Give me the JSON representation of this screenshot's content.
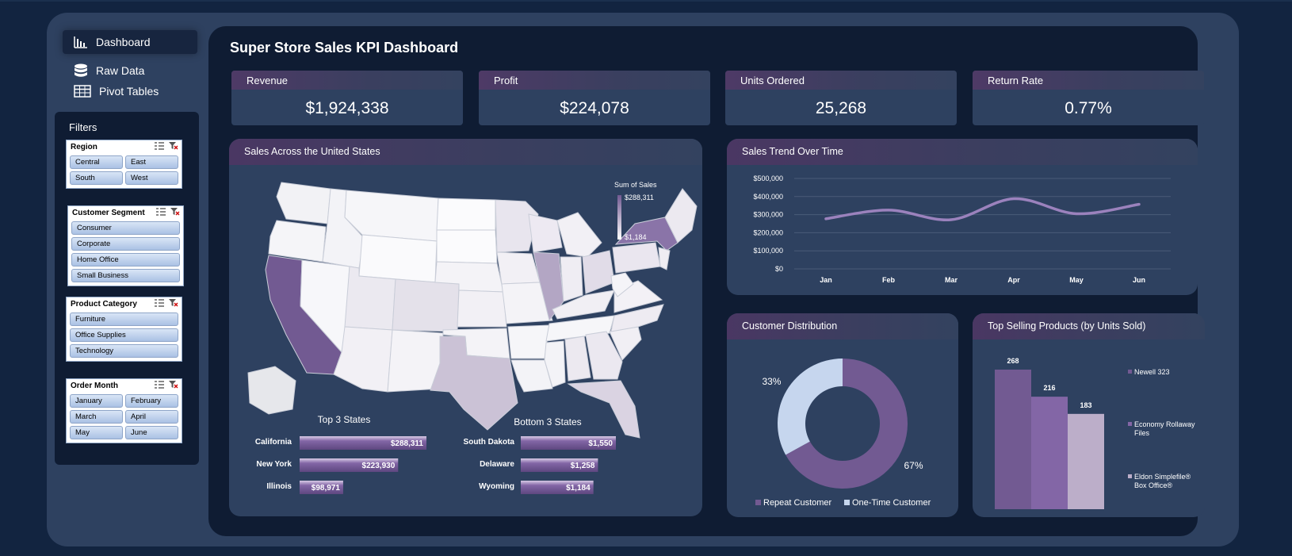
{
  "nav": {
    "items": [
      {
        "label": "Dashboard",
        "icon": "bar-chart-icon"
      },
      {
        "label": "Raw Data",
        "icon": "database-icon"
      },
      {
        "label": "Pivot Tables",
        "icon": "table-icon"
      }
    ]
  },
  "filters": {
    "title": "Filters",
    "slicers": [
      {
        "title": "Region",
        "items": [
          "Central",
          "East",
          "South",
          "West"
        ]
      },
      {
        "title": "Customer Segment",
        "items": [
          "Consumer",
          "Corporate",
          "Home Office",
          "Small Business"
        ]
      },
      {
        "title": "Product Category",
        "items": [
          "Furniture",
          "Office Supplies",
          "Technology"
        ]
      },
      {
        "title": "Order Month",
        "items": [
          "January",
          "February",
          "March",
          "April",
          "May",
          "June"
        ]
      }
    ]
  },
  "dashboard": {
    "title": "Super Store Sales KPI Dashboard"
  },
  "kpis": [
    {
      "label": "Revenue",
      "value": "$1,924,338"
    },
    {
      "label": "Profit",
      "value": "$224,078"
    },
    {
      "label": "Units Ordered",
      "value": "25,268"
    },
    {
      "label": "Return Rate",
      "value": "0.77%"
    }
  ],
  "colors": {
    "accent": "#725a92",
    "accent_mid": "#8366a6",
    "accent_light": "#bcaec9",
    "donut_light": "#c6d6ee",
    "line": "#9b82bd",
    "panel": "#2e4160",
    "main_bg": "#0f1c33"
  },
  "chart_data": [
    {
      "type": "map",
      "title": "Sales Across the United States",
      "legend": {
        "title": "Sum of Sales",
        "max": "$288,311",
        "min": "$1,184"
      },
      "top_title": "Top 3 States",
      "top": [
        {
          "state": "California",
          "value": 288311,
          "label": "$288,311"
        },
        {
          "state": "New York",
          "value": 223930,
          "label": "$223,930"
        },
        {
          "state": "Illinois",
          "value": 98971,
          "label": "$98,971"
        }
      ],
      "bottom_title": "Bottom 3 States",
      "bottom": [
        {
          "state": "South Dakota",
          "value": 1550,
          "label": "$1,550"
        },
        {
          "state": "Delaware",
          "value": 1258,
          "label": "$1,258"
        },
        {
          "state": "Wyoming",
          "value": 1184,
          "label": "$1,184"
        }
      ]
    },
    {
      "type": "line",
      "title": "Sales Trend Over Time",
      "categories": [
        "Jan",
        "Feb",
        "Mar",
        "Apr",
        "May",
        "Jun"
      ],
      "values": [
        277000,
        325000,
        272000,
        388000,
        305000,
        357000
      ],
      "ylim": [
        0,
        500000
      ],
      "yticks": [
        "$0",
        "$100,000",
        "$200,000",
        "$300,000",
        "$400,000",
        "$500,000"
      ],
      "grid": true
    },
    {
      "type": "pie",
      "title": "Customer Distribution",
      "slices": [
        {
          "name": "Repeat Customer",
          "value": 67,
          "label": "67%"
        },
        {
          "name": "One-Time Customer",
          "value": 33,
          "label": "33%"
        }
      ],
      "legend": "bottom"
    },
    {
      "type": "bar",
      "title": "Top Selling Products (by Units Sold)",
      "categories": [
        "Newell 323",
        "Economy Rollaway Files",
        "Eldon Simplefile® Box Office®"
      ],
      "values": [
        268,
        216,
        183
      ],
      "labels": [
        "268",
        "216",
        "183"
      ],
      "legend_labels": [
        [
          "Newell 323"
        ],
        [
          "Economy Rollaway",
          "Files"
        ],
        [
          "Eldon Simplefile®",
          "Box Office®"
        ]
      ],
      "legend": "right"
    }
  ]
}
